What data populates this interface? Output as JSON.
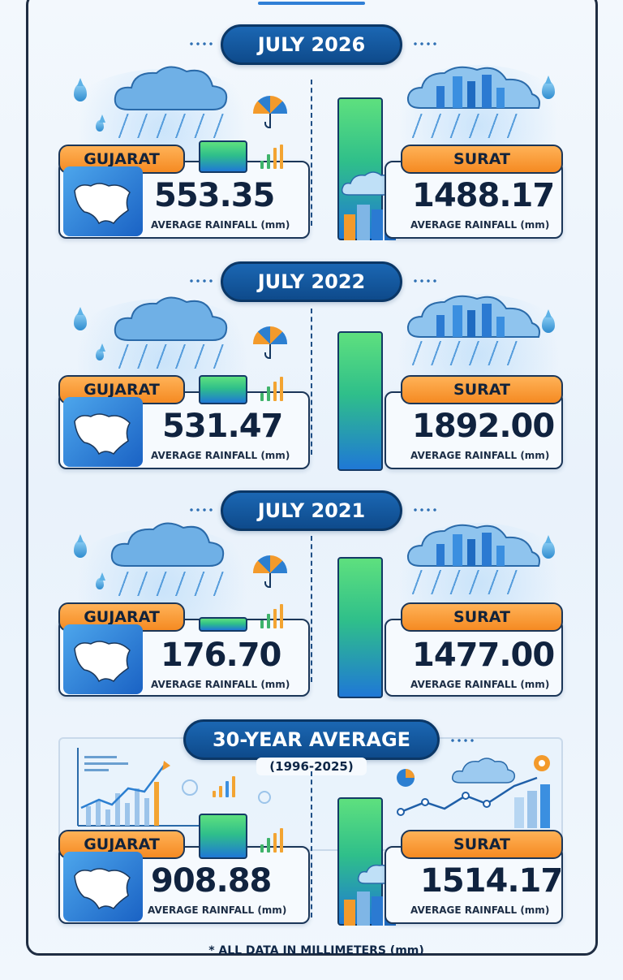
{
  "sections": [
    {
      "title": "JULY 2026",
      "gujarat": {
        "label": "GUJARAT",
        "value": "553.35",
        "caption": "AVERAGE RAINFALL (mm)"
      },
      "surat": {
        "label": "SURAT",
        "value": "1488.17",
        "caption": "AVERAGE RAINFALL (mm)"
      }
    },
    {
      "title": "JULY 2022",
      "gujarat": {
        "label": "GUJARAT",
        "value": "531.47",
        "caption": "AVERAGE RAINFALL (mm)"
      },
      "surat": {
        "label": "SURAT",
        "value": "1892.00",
        "caption": "AVERAGE RAINFALL (mm)"
      }
    },
    {
      "title": "JULY 2021",
      "gujarat": {
        "label": "GUJARAT",
        "value": "176.70",
        "caption": "AVERAGE RAINFALL (mm)"
      },
      "surat": {
        "label": "SURAT",
        "value": "1477.00",
        "caption": "AVERAGE RAINFALL (mm)"
      }
    },
    {
      "title": "30-YEAR AVERAGE",
      "subtitle": "(1996-2025)",
      "gujarat": {
        "label": "GUJARAT",
        "value": "908.88",
        "caption": "AVERAGE RAINFALL (mm)"
      },
      "surat": {
        "label": "SURAT",
        "value": "1514.17",
        "caption": "AVERAGE RAINFALL (mm)"
      }
    }
  ],
  "footer": "* ALL DATA IN MILLIMETERS (mm)",
  "colors": {
    "accent_blue": "#1b67b3",
    "tag_orange": "#f58a22",
    "bar_green": "#5ee07e",
    "bar_blue": "#1f78d6"
  }
}
